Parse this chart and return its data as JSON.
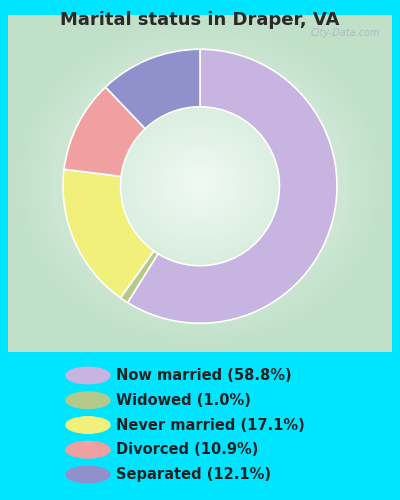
{
  "title": "Marital status in Draper, VA",
  "slices": [
    {
      "label": "Now married (58.8%)",
      "value": 58.8,
      "color": "#c8b4e0"
    },
    {
      "label": "Widowed (1.0%)",
      "value": 1.0,
      "color": "#b5c98a"
    },
    {
      "label": "Never married (17.1%)",
      "value": 17.1,
      "color": "#f0f07a"
    },
    {
      "label": "Divorced (10.9%)",
      "value": 10.9,
      "color": "#f0a0a0"
    },
    {
      "label": "Separated (12.1%)",
      "value": 12.1,
      "color": "#9090cc"
    }
  ],
  "bg_outer": "#00e5ff",
  "bg_chart_center": "#f0faf4",
  "bg_chart_edge": "#c8e8d0",
  "title_color": "#2a2a2a",
  "legend_text_color": "#222222",
  "watermark": "City-Data.com",
  "title_fontsize": 13,
  "legend_fontsize": 10.5
}
